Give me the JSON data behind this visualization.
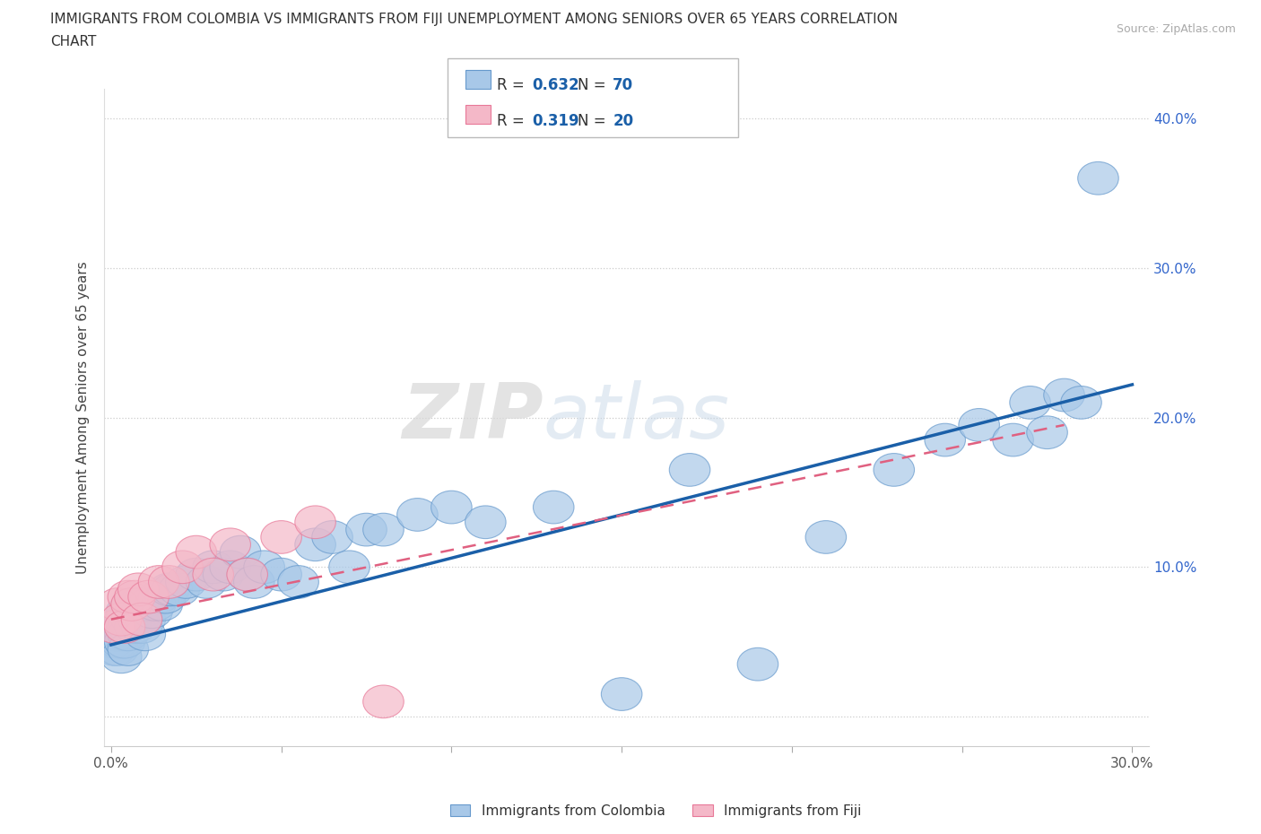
{
  "title_line1": "IMMIGRANTS FROM COLOMBIA VS IMMIGRANTS FROM FIJI UNEMPLOYMENT AMONG SENIORS OVER 65 YEARS CORRELATION",
  "title_line2": "CHART",
  "source": "Source: ZipAtlas.com",
  "ylabel": "Unemployment Among Seniors over 65 years",
  "xlim": [
    -0.002,
    0.305
  ],
  "ylim": [
    -0.02,
    0.42
  ],
  "xticks": [
    0.0,
    0.05,
    0.1,
    0.15,
    0.2,
    0.25,
    0.3
  ],
  "yticks": [
    0.0,
    0.1,
    0.2,
    0.3,
    0.4
  ],
  "xtick_labels": [
    "0.0%",
    "",
    "",
    "",
    "",
    "",
    "30.0%"
  ],
  "ytick_labels": [
    "",
    "10.0%",
    "20.0%",
    "30.0%",
    "40.0%"
  ],
  "colombia_color": "#a8c8e8",
  "fiji_color": "#f4b8c8",
  "colombia_edge": "#6699cc",
  "fiji_edge": "#e87898",
  "line_colombia_color": "#1a5fa8",
  "line_fiji_color": "#e06080",
  "r_colombia": 0.632,
  "n_colombia": 70,
  "r_fiji": 0.319,
  "n_fiji": 20,
  "watermark_zip": "ZIP",
  "watermark_atlas": "atlas",
  "legend_entries": [
    "Immigrants from Colombia",
    "Immigrants from Fiji"
  ],
  "colombia_x": [
    0.0005,
    0.001,
    0.0015,
    0.002,
    0.002,
    0.0025,
    0.003,
    0.003,
    0.003,
    0.0035,
    0.004,
    0.004,
    0.004,
    0.0045,
    0.005,
    0.005,
    0.005,
    0.006,
    0.006,
    0.007,
    0.007,
    0.008,
    0.008,
    0.009,
    0.009,
    0.01,
    0.01,
    0.011,
    0.012,
    0.013,
    0.014,
    0.015,
    0.016,
    0.017,
    0.018,
    0.02,
    0.022,
    0.025,
    0.028,
    0.03,
    0.033,
    0.035,
    0.038,
    0.04,
    0.042,
    0.045,
    0.05,
    0.055,
    0.06,
    0.065,
    0.07,
    0.075,
    0.08,
    0.09,
    0.1,
    0.11,
    0.13,
    0.15,
    0.17,
    0.19,
    0.21,
    0.23,
    0.245,
    0.255,
    0.265,
    0.27,
    0.275,
    0.28,
    0.285,
    0.29
  ],
  "colombia_y": [
    0.05,
    0.045,
    0.055,
    0.05,
    0.045,
    0.06,
    0.055,
    0.05,
    0.04,
    0.06,
    0.055,
    0.065,
    0.05,
    0.07,
    0.06,
    0.055,
    0.045,
    0.065,
    0.075,
    0.06,
    0.07,
    0.065,
    0.075,
    0.07,
    0.06,
    0.065,
    0.055,
    0.075,
    0.07,
    0.075,
    0.08,
    0.075,
    0.08,
    0.085,
    0.085,
    0.085,
    0.09,
    0.095,
    0.09,
    0.1,
    0.095,
    0.1,
    0.11,
    0.095,
    0.09,
    0.1,
    0.095,
    0.09,
    0.115,
    0.12,
    0.1,
    0.125,
    0.125,
    0.135,
    0.14,
    0.13,
    0.14,
    0.015,
    0.165,
    0.035,
    0.12,
    0.165,
    0.185,
    0.195,
    0.185,
    0.21,
    0.19,
    0.215,
    0.21,
    0.36
  ],
  "fiji_x": [
    0.001,
    0.002,
    0.003,
    0.004,
    0.005,
    0.006,
    0.007,
    0.008,
    0.009,
    0.011,
    0.014,
    0.017,
    0.021,
    0.025,
    0.03,
    0.035,
    0.04,
    0.05,
    0.06,
    0.08
  ],
  "fiji_y": [
    0.06,
    0.075,
    0.065,
    0.06,
    0.08,
    0.075,
    0.08,
    0.085,
    0.065,
    0.08,
    0.09,
    0.09,
    0.1,
    0.11,
    0.095,
    0.115,
    0.095,
    0.12,
    0.13,
    0.01
  ]
}
